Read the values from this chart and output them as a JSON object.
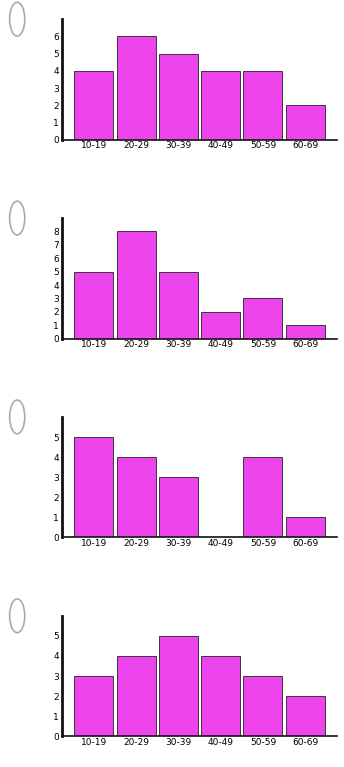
{
  "histograms": [
    {
      "values": [
        4,
        6,
        5,
        4,
        4,
        2
      ],
      "ylim": [
        0,
        7
      ],
      "yticks": [
        0,
        1,
        2,
        3,
        4,
        5,
        6
      ]
    },
    {
      "values": [
        5,
        8,
        5,
        2,
        3,
        1
      ],
      "ylim": [
        0,
        9
      ],
      "yticks": [
        0,
        1,
        2,
        3,
        4,
        5,
        6,
        7,
        8
      ]
    },
    {
      "values": [
        5,
        4,
        3,
        0,
        4,
        1
      ],
      "ylim": [
        0,
        6
      ],
      "yticks": [
        0,
        1,
        2,
        3,
        4,
        5
      ]
    },
    {
      "values": [
        3,
        4,
        5,
        4,
        3,
        2
      ],
      "ylim": [
        0,
        6
      ],
      "yticks": [
        0,
        1,
        2,
        3,
        4,
        5
      ]
    }
  ],
  "categories": [
    "10-19",
    "20-29",
    "30-39",
    "40-49",
    "50-59",
    "60-69"
  ],
  "bar_color": "#ee44ee",
  "bar_edgecolor": "#222222",
  "background_color": "#ffffff",
  "radio_edgecolor": "#aaaaaa",
  "spine_color": "#111111"
}
